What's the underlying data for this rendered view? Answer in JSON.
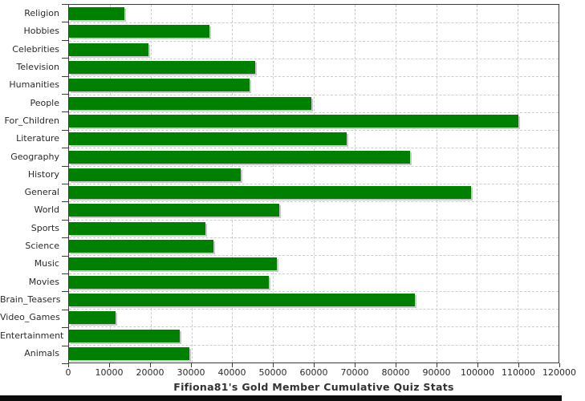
{
  "chart_data": {
    "type": "bar",
    "orientation": "horizontal",
    "title": "Fifiona81's Gold Member Cumulative Quiz Stats",
    "categories": [
      "Religion",
      "Hobbies",
      "Celebrities",
      "Television",
      "Humanities",
      "People",
      "For_Children",
      "Literature",
      "Geography",
      "History",
      "General",
      "World",
      "Sports",
      "Science",
      "Music",
      "Movies",
      "Brain_Teasers",
      "Video_Games",
      "Entertainment",
      "Animals"
    ],
    "values": [
      13500,
      34500,
      19500,
      45700,
      44300,
      59400,
      110200,
      68000,
      83700,
      42000,
      98600,
      51500,
      33500,
      35500,
      50900,
      49000,
      84700,
      11400,
      27100,
      29600
    ],
    "xlabel": "",
    "ylabel": "",
    "xlim": [
      0,
      120000
    ],
    "x_ticks": [
      0,
      10000,
      20000,
      30000,
      40000,
      50000,
      60000,
      70000,
      80000,
      90000,
      100000,
      110000,
      120000
    ],
    "x_tick_labels": [
      "0",
      "10000",
      "20000",
      "30000",
      "40000",
      "50000",
      "60000",
      "70000",
      "80000",
      "90000",
      "100000",
      "110000",
      "120000"
    ],
    "grid": "dashed",
    "legend": "none"
  },
  "colors": {
    "bar": "#008000",
    "bar_shadow": "#c9c9c9",
    "grid": "#cdcdcd",
    "axis": "#3b3b3b",
    "text": "#2b2b2b",
    "title_text": "#333333",
    "background": "#ffffff",
    "bottom_strip": "#0c0c0c"
  }
}
